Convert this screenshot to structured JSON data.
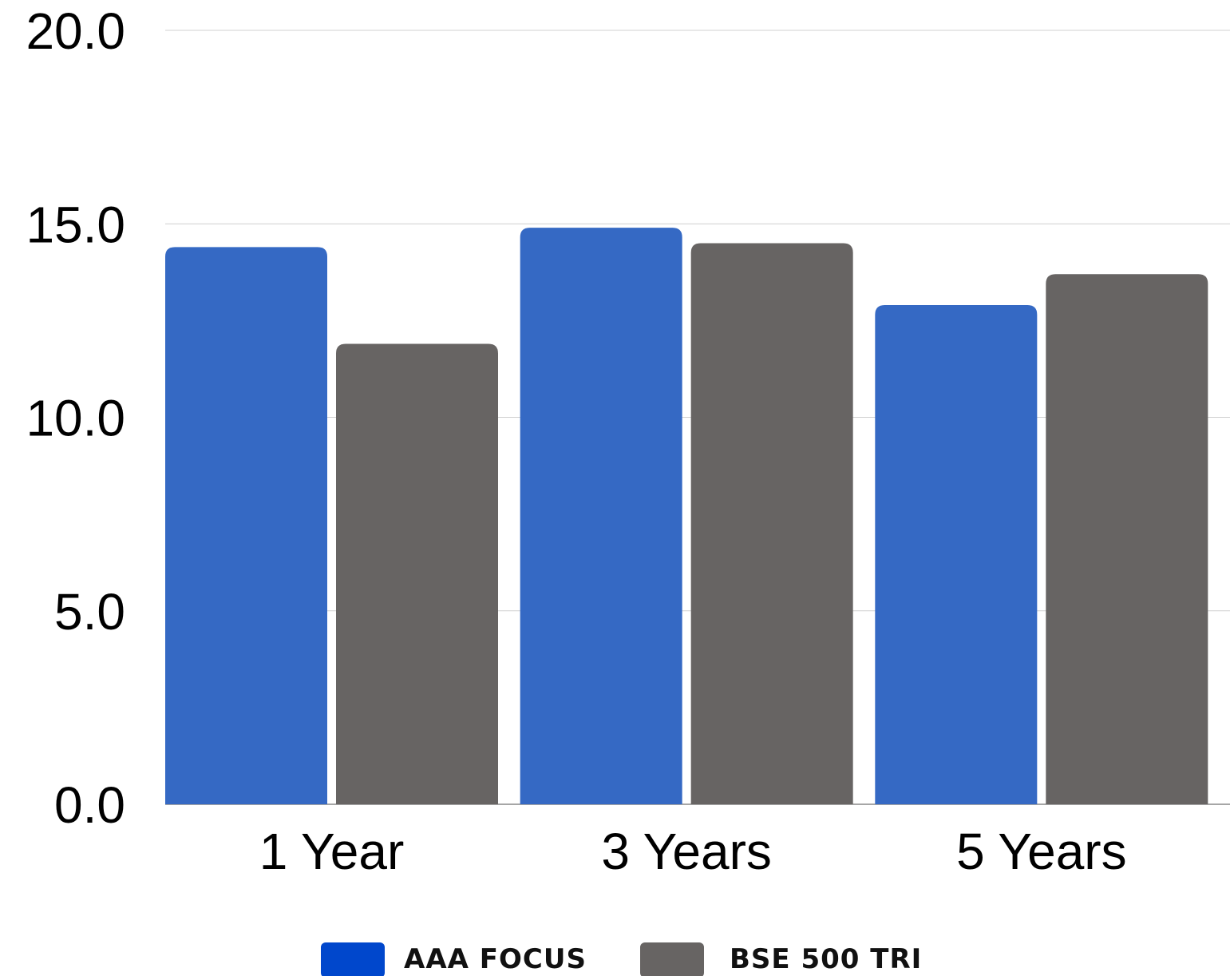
{
  "chart_data": {
    "type": "bar",
    "title": "",
    "xlabel": "",
    "ylabel": "",
    "categories": [
      "1 Year",
      "3 Years",
      "5 Years"
    ],
    "series": [
      {
        "name": "AAA FOCUS",
        "color": "#3569c4",
        "legend_color": "#0047cc",
        "values": [
          14.4,
          14.9,
          12.9
        ]
      },
      {
        "name": "BSE 500 TRI",
        "color": "#676463",
        "legend_color": "#676463",
        "values": [
          11.9,
          14.5,
          13.7
        ]
      }
    ],
    "ylim": [
      0,
      20
    ],
    "yticks": [
      "0.0",
      "5.0",
      "10.0",
      "15.0",
      "20.0"
    ],
    "grid": true,
    "legend_position": "bottom"
  }
}
